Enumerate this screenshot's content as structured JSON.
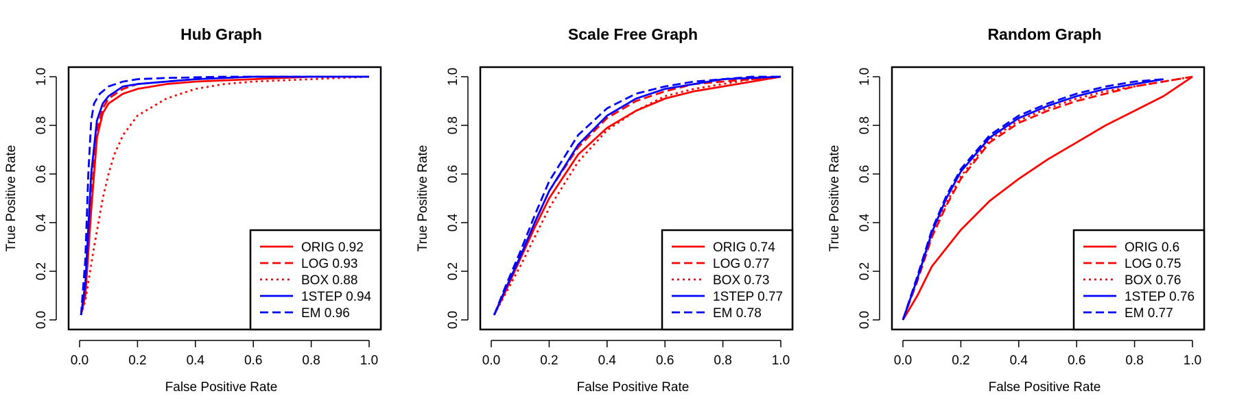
{
  "chart_data": [
    {
      "type": "line",
      "title": "Hub Graph",
      "xlabel": "False Positive Rate",
      "ylabel": "True Positive Rate",
      "xlim": [
        0,
        1
      ],
      "ylim": [
        0,
        1
      ],
      "xticks": [
        "0.0",
        "0.2",
        "0.4",
        "0.6",
        "0.8",
        "1.0"
      ],
      "yticks": [
        "0.0",
        "0.2",
        "0.4",
        "0.6",
        "0.8",
        "1.0"
      ],
      "legend_position": "bottom-right",
      "series": [
        {
          "name": "ORIG",
          "label": "ORIG 0.92",
          "color": "#ff0000",
          "dash": "solid",
          "x": [
            0.005,
            0.02,
            0.04,
            0.06,
            0.08,
            0.1,
            0.15,
            0.2,
            0.3,
            0.4,
            0.6,
            0.8,
            1.0
          ],
          "y": [
            0.02,
            0.1,
            0.45,
            0.75,
            0.85,
            0.89,
            0.93,
            0.95,
            0.97,
            0.98,
            0.99,
            1.0,
            1.0
          ]
        },
        {
          "name": "LOG",
          "label": "LOG 0.93",
          "color": "#ff0000",
          "dash": "dashed",
          "x": [
            0.005,
            0.02,
            0.04,
            0.06,
            0.08,
            0.1,
            0.15,
            0.2,
            0.3,
            0.4,
            0.6,
            0.8,
            1.0
          ],
          "y": [
            0.02,
            0.12,
            0.5,
            0.78,
            0.87,
            0.91,
            0.95,
            0.97,
            0.98,
            0.99,
            1.0,
            1.0,
            1.0
          ]
        },
        {
          "name": "BOX",
          "label": "BOX 0.88",
          "color": "#ff0000",
          "dash": "dotted",
          "x": [
            0.005,
            0.02,
            0.05,
            0.08,
            0.1,
            0.12,
            0.15,
            0.2,
            0.3,
            0.4,
            0.5,
            0.6,
            0.8,
            1.0
          ],
          "y": [
            0.02,
            0.08,
            0.3,
            0.5,
            0.6,
            0.68,
            0.76,
            0.84,
            0.91,
            0.95,
            0.97,
            0.98,
            0.99,
            1.0
          ]
        },
        {
          "name": "1STEP",
          "label": "1STEP 0.94",
          "color": "#0000ff",
          "dash": "solid",
          "x": [
            0.005,
            0.02,
            0.04,
            0.06,
            0.08,
            0.1,
            0.15,
            0.2,
            0.3,
            0.4,
            0.6,
            0.8,
            1.0
          ],
          "y": [
            0.02,
            0.15,
            0.6,
            0.82,
            0.89,
            0.92,
            0.96,
            0.97,
            0.98,
            0.99,
            1.0,
            1.0,
            1.0
          ]
        },
        {
          "name": "EM",
          "label": "EM 0.96",
          "color": "#0000ff",
          "dash": "dashed",
          "x": [
            0.005,
            0.02,
            0.03,
            0.04,
            0.05,
            0.07,
            0.1,
            0.15,
            0.2,
            0.3,
            0.5,
            0.8,
            1.0
          ],
          "y": [
            0.02,
            0.25,
            0.6,
            0.82,
            0.89,
            0.93,
            0.96,
            0.98,
            0.99,
            0.995,
            1.0,
            1.0,
            1.0
          ]
        }
      ]
    },
    {
      "type": "line",
      "title": "Scale Free Graph",
      "xlabel": "False Positive Rate",
      "ylabel": "True Positive Rate",
      "xlim": [
        0,
        1
      ],
      "ylim": [
        0,
        1
      ],
      "xticks": [
        "0.0",
        "0.2",
        "0.4",
        "0.6",
        "0.8",
        "1.0"
      ],
      "yticks": [
        "0.0",
        "0.2",
        "0.4",
        "0.6",
        "0.8",
        "1.0"
      ],
      "legend_position": "bottom-right",
      "series": [
        {
          "name": "ORIG",
          "label": "ORIG 0.74",
          "color": "#ff0000",
          "dash": "solid",
          "x": [
            0.01,
            0.05,
            0.1,
            0.15,
            0.2,
            0.3,
            0.4,
            0.5,
            0.6,
            0.7,
            0.8,
            0.9,
            1.0
          ],
          "y": [
            0.02,
            0.12,
            0.25,
            0.38,
            0.5,
            0.68,
            0.79,
            0.86,
            0.91,
            0.94,
            0.96,
            0.98,
            1.0
          ]
        },
        {
          "name": "LOG",
          "label": "LOG 0.77",
          "color": "#ff0000",
          "dash": "dashed",
          "x": [
            0.01,
            0.05,
            0.1,
            0.15,
            0.2,
            0.3,
            0.4,
            0.5,
            0.6,
            0.7,
            0.8,
            0.9,
            1.0
          ],
          "y": [
            0.02,
            0.12,
            0.26,
            0.4,
            0.53,
            0.71,
            0.83,
            0.9,
            0.94,
            0.97,
            0.98,
            0.99,
            1.0
          ]
        },
        {
          "name": "BOX",
          "label": "BOX 0.73",
          "color": "#ff0000",
          "dash": "dotted",
          "x": [
            0.01,
            0.05,
            0.1,
            0.15,
            0.2,
            0.3,
            0.4,
            0.5,
            0.6,
            0.7,
            0.8,
            0.9,
            1.0
          ],
          "y": [
            0.02,
            0.11,
            0.22,
            0.34,
            0.46,
            0.65,
            0.78,
            0.86,
            0.92,
            0.95,
            0.97,
            0.99,
            1.0
          ]
        },
        {
          "name": "1STEP",
          "label": "1STEP 0.77",
          "color": "#0000ff",
          "dash": "solid",
          "x": [
            0.01,
            0.05,
            0.1,
            0.15,
            0.2,
            0.3,
            0.4,
            0.5,
            0.6,
            0.7,
            0.8,
            0.9,
            1.0
          ],
          "y": [
            0.02,
            0.13,
            0.26,
            0.4,
            0.53,
            0.72,
            0.84,
            0.91,
            0.95,
            0.97,
            0.99,
            0.995,
            1.0
          ]
        },
        {
          "name": "EM",
          "label": "EM 0.78",
          "color": "#0000ff",
          "dash": "dashed",
          "x": [
            0.01,
            0.05,
            0.1,
            0.15,
            0.2,
            0.3,
            0.4,
            0.5,
            0.6,
            0.7,
            0.8,
            0.9,
            1.0
          ],
          "y": [
            0.02,
            0.14,
            0.28,
            0.43,
            0.57,
            0.76,
            0.87,
            0.93,
            0.96,
            0.98,
            0.99,
            1.0,
            1.0
          ]
        }
      ]
    },
    {
      "type": "line",
      "title": "Random Graph",
      "xlabel": "False Positive Rate",
      "ylabel": "True Positive Rate",
      "xlim": [
        0,
        1
      ],
      "ylim": [
        0,
        1
      ],
      "xticks": [
        "0.0",
        "0.2",
        "0.4",
        "0.6",
        "0.8",
        "1.0"
      ],
      "yticks": [
        "0.0",
        "0.2",
        "0.4",
        "0.6",
        "0.8",
        "1.0"
      ],
      "legend_position": "bottom-right",
      "series": [
        {
          "name": "ORIG",
          "label": "ORIG 0.6",
          "color": "#ff0000",
          "dash": "solid",
          "x": [
            0.0,
            0.05,
            0.1,
            0.2,
            0.3,
            0.4,
            0.5,
            0.6,
            0.7,
            0.8,
            0.9,
            1.0
          ],
          "y": [
            0.0,
            0.1,
            0.22,
            0.37,
            0.49,
            0.58,
            0.66,
            0.73,
            0.8,
            0.86,
            0.92,
            1.0
          ]
        },
        {
          "name": "LOG",
          "label": "LOG 0.75",
          "color": "#ff0000",
          "dash": "dashed",
          "x": [
            0.0,
            0.05,
            0.1,
            0.15,
            0.2,
            0.3,
            0.4,
            0.5,
            0.6,
            0.7,
            0.8,
            0.9,
            1.0
          ],
          "y": [
            0.0,
            0.16,
            0.34,
            0.47,
            0.58,
            0.73,
            0.81,
            0.86,
            0.9,
            0.93,
            0.96,
            0.98,
            1.0
          ]
        },
        {
          "name": "BOX",
          "label": "BOX 0.76",
          "color": "#ff0000",
          "dash": "dotted",
          "x": [
            0.0,
            0.05,
            0.1,
            0.15,
            0.2,
            0.3,
            0.4,
            0.5,
            0.6,
            0.7,
            0.8,
            0.9,
            1.0
          ],
          "y": [
            0.0,
            0.17,
            0.35,
            0.48,
            0.59,
            0.74,
            0.82,
            0.87,
            0.91,
            0.94,
            0.96,
            0.98,
            1.0
          ]
        },
        {
          "name": "1STEP",
          "label": "1STEP 0.76",
          "color": "#0000ff",
          "dash": "solid",
          "x": [
            0.0,
            0.05,
            0.1,
            0.15,
            0.2,
            0.3,
            0.4,
            0.5,
            0.6,
            0.7,
            0.8,
            0.9
          ],
          "y": [
            0.0,
            0.17,
            0.36,
            0.5,
            0.61,
            0.75,
            0.83,
            0.88,
            0.92,
            0.95,
            0.97,
            0.99
          ]
        },
        {
          "name": "EM",
          "label": "EM 0.77",
          "color": "#0000ff",
          "dash": "dashed",
          "x": [
            0.0,
            0.05,
            0.1,
            0.15,
            0.2,
            0.3,
            0.4,
            0.5,
            0.6,
            0.7,
            0.8,
            0.9
          ],
          "y": [
            0.0,
            0.18,
            0.37,
            0.51,
            0.62,
            0.76,
            0.84,
            0.89,
            0.93,
            0.96,
            0.98,
            0.99
          ]
        }
      ]
    }
  ]
}
